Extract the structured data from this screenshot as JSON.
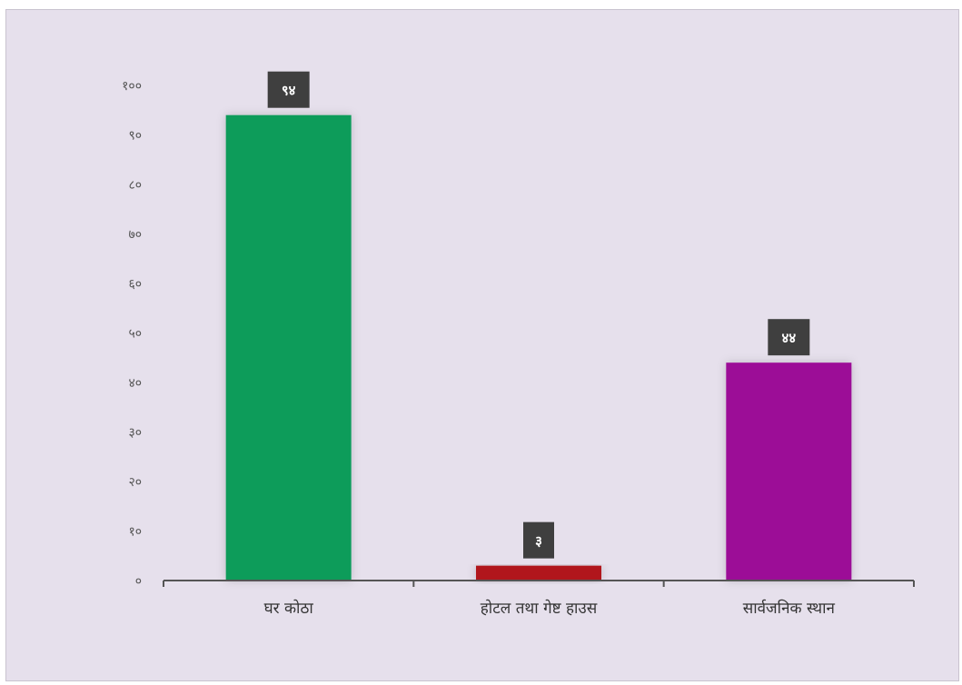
{
  "chart_data": {
    "type": "bar",
    "categories": [
      "घर कोठा",
      "होटल तथा गेष्ट हाउस",
      "सार्वजनिक स्थान"
    ],
    "values": [
      94,
      3,
      44
    ],
    "value_labels": [
      "९४",
      "३",
      "४४"
    ],
    "colors": [
      "#0e9c5a",
      "#b1181c",
      "#9c0797"
    ],
    "ylim": [
      0,
      100
    ],
    "yticks": [
      "०",
      "१०",
      "२०",
      "३०",
      "४०",
      "५०",
      "६०",
      "७०",
      "८०",
      "९०",
      "१००"
    ],
    "grid": false,
    "legend": "none",
    "label_box_color": "#3f3f3f"
  }
}
